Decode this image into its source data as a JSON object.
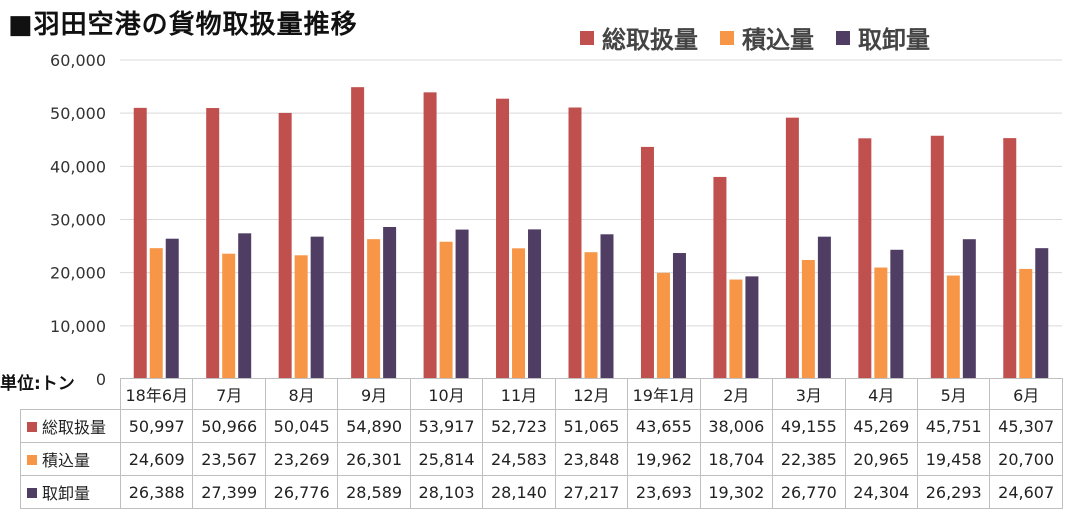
{
  "title": "■羽田空港の貨物取扱量推移",
  "unit_label": "単位:トン",
  "chart_data": {
    "type": "bar",
    "ylim": [
      0,
      60000
    ],
    "yticks": [
      "0",
      "10,000",
      "20,000",
      "30,000",
      "40,000",
      "50,000",
      "60,000"
    ],
    "ytick_values": [
      0,
      10000,
      20000,
      30000,
      40000,
      50000,
      60000
    ],
    "grid": true,
    "legend_position": "top-right",
    "categories": [
      "18年6月",
      "7月",
      "8月",
      "9月",
      "10月",
      "11月",
      "12月",
      "19年1月",
      "2月",
      "3月",
      "4月",
      "5月",
      "6月"
    ],
    "series": [
      {
        "name": "総取扱量",
        "color": "#c0504d",
        "values": [
          50997,
          50966,
          50045,
          54890,
          53917,
          52723,
          51065,
          43655,
          38006,
          49155,
          45269,
          45751,
          45307
        ],
        "labels": [
          "50,997",
          "50,966",
          "50,045",
          "54,890",
          "53,917",
          "52,723",
          "51,065",
          "43,655",
          "38,006",
          "49,155",
          "45,269",
          "45,751",
          "45,307"
        ]
      },
      {
        "name": "積込量",
        "color": "#f79646",
        "values": [
          24609,
          23567,
          23269,
          26301,
          25814,
          24583,
          23848,
          19962,
          18704,
          22385,
          20965,
          19458,
          20700
        ],
        "labels": [
          "24,609",
          "23,567",
          "23,269",
          "26,301",
          "25,814",
          "24,583",
          "23,848",
          "19,962",
          "18,704",
          "22,385",
          "20,965",
          "19,458",
          "20,700"
        ]
      },
      {
        "name": "取卸量",
        "color": "#4f3d63",
        "values": [
          26388,
          27399,
          26776,
          28589,
          28103,
          28140,
          27217,
          23693,
          19302,
          26770,
          24304,
          26293,
          24607
        ],
        "labels": [
          "26,388",
          "27,399",
          "26,776",
          "28,589",
          "28,103",
          "28,140",
          "27,217",
          "23,693",
          "19,302",
          "26,770",
          "24,304",
          "26,293",
          "24,607"
        ]
      }
    ]
  }
}
